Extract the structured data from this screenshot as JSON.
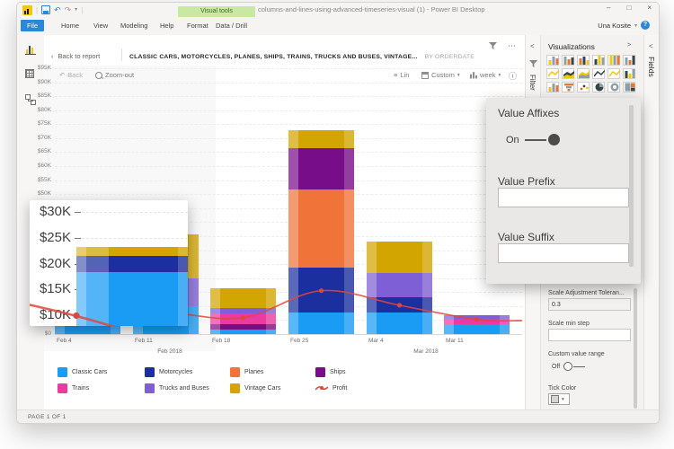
{
  "window": {
    "title": "columns-and-lines-using-advanced-timeseries-visual (1) - Power BI Desktop",
    "user_name": "Una Kosite",
    "contextual_label": "Visual tools",
    "status_bar": "PAGE 1 OF 1"
  },
  "icons": {
    "back_chevron": "‹",
    "more": "⋯",
    "minimize": "–",
    "maximize": "□",
    "close": "×",
    "list": "≡",
    "info": "ⓘ",
    "dropdown": "▾",
    "help": "?",
    "undo": "↶",
    "redo": "↷",
    "collapse_right": ">",
    "collapse_left": "<"
  },
  "ribbon": {
    "tabs": [
      "File",
      "Home",
      "View",
      "Modeling",
      "Help"
    ],
    "contextual_tabs": [
      "Format",
      "Data / Drill"
    ]
  },
  "breadcrumb": {
    "back_label": "Back to report",
    "title": "CLASSIC CARS, MOTORCYCLES, PLANES, SHIPS, TRAINS, TRUCKS AND BUSES, VINTAGE...",
    "subtitle": "BY ORDERDATE"
  },
  "chart_toolbar": {
    "back_label": "Back",
    "zoom_out_label": "Zoom-out",
    "lin_label": "Lin",
    "custom_label": "Custom",
    "week_label": "week"
  },
  "chart_data": {
    "type": "bar",
    "subtype": "stacked-columns-with-profit-line",
    "categories": [
      "Feb 4",
      "Feb 11",
      "Feb 18",
      "Feb 25",
      "Mar 4",
      "Mar 11"
    ],
    "group_labels": [
      "Feb 2018",
      "Mar 2018"
    ],
    "y_ticks": [
      "$95K",
      "$90K",
      "$85K",
      "$80K",
      "$75K",
      "$70K",
      "$65K",
      "$60K",
      "$55K",
      "$50K",
      "$45K",
      "$40K",
      "$35K",
      "$30K",
      "$25K",
      "$20K",
      "$15K",
      "$10K",
      "$5K",
      "$0"
    ],
    "ylim": [
      0,
      95000
    ],
    "y_step": 5000,
    "grid": true,
    "legend_position": "bottom",
    "series": [
      {
        "name": "Classic Cars",
        "color": "#1a9bf4",
        "values": [
          18400,
          9900,
          1600,
          7800,
          7700,
          3500
        ]
      },
      {
        "name": "Motorcycles",
        "color": "#1b2f9e",
        "values": [
          3100,
          0,
          0,
          16100,
          5500,
          0
        ]
      },
      {
        "name": "Planes",
        "color": "#f0733a",
        "values": [
          0,
          0,
          0,
          27800,
          0,
          0
        ]
      },
      {
        "name": "Ships",
        "color": "#780d8a",
        "values": [
          0,
          0,
          1900,
          14600,
          0,
          0
        ]
      },
      {
        "name": "Trains",
        "color": "#ea3ba0",
        "values": [
          0,
          0,
          3900,
          0,
          0,
          1900
        ]
      },
      {
        "name": "Trucks and Buses",
        "color": "#7e5fd5",
        "values": [
          0,
          10000,
          2000,
          0,
          8600,
          1300
        ]
      },
      {
        "name": "Vintage Cars",
        "color": "#d2a500",
        "values": [
          1800,
          15700,
          7000,
          6500,
          11300,
          0
        ]
      }
    ],
    "line_series": {
      "name": "Profit",
      "color": "#e0473c",
      "values": [
        5500,
        7500,
        5800,
        15500,
        10300,
        5200
      ],
      "edge_start": 9500,
      "edge_end": 4800
    }
  },
  "lens_callout": {
    "ticks": [
      "$30K",
      "$25K",
      "$20K",
      "$15K",
      "$10K"
    ],
    "magnified_category": "Feb 4"
  },
  "affix_callout": {
    "title": "Value Affixes",
    "toggle_label": "On",
    "prefix_label": "Value Prefix",
    "prefix_value": "",
    "suffix_label": "Value Suffix",
    "suffix_value": ""
  },
  "right_panel": {
    "visualizations_title": "Visualizations",
    "fields_label": "Fields",
    "filter_label": "Filter",
    "viz_icon_names": [
      "stacked-bar",
      "stacked-column",
      "clustered-bar",
      "clustered-column",
      "hundred-stacked-bar",
      "hundred-stacked-column",
      "line-chart",
      "area-chart",
      "stacked-area",
      "line-and-clustered-column",
      "line-and-stacked-column",
      "ribbon-chart",
      "waterfall",
      "funnel",
      "scatter",
      "pie",
      "donut",
      "treemap"
    ],
    "settings": {
      "scale_tolerance_label": "Scale Adjustment Toleran...",
      "scale_tolerance_value": "0.3",
      "scale_min_step_label": "Scale min step",
      "scale_min_step_value": "",
      "custom_range_label": "Custom value range",
      "custom_range_state": "Off",
      "tick_color_label": "Tick Color"
    }
  }
}
